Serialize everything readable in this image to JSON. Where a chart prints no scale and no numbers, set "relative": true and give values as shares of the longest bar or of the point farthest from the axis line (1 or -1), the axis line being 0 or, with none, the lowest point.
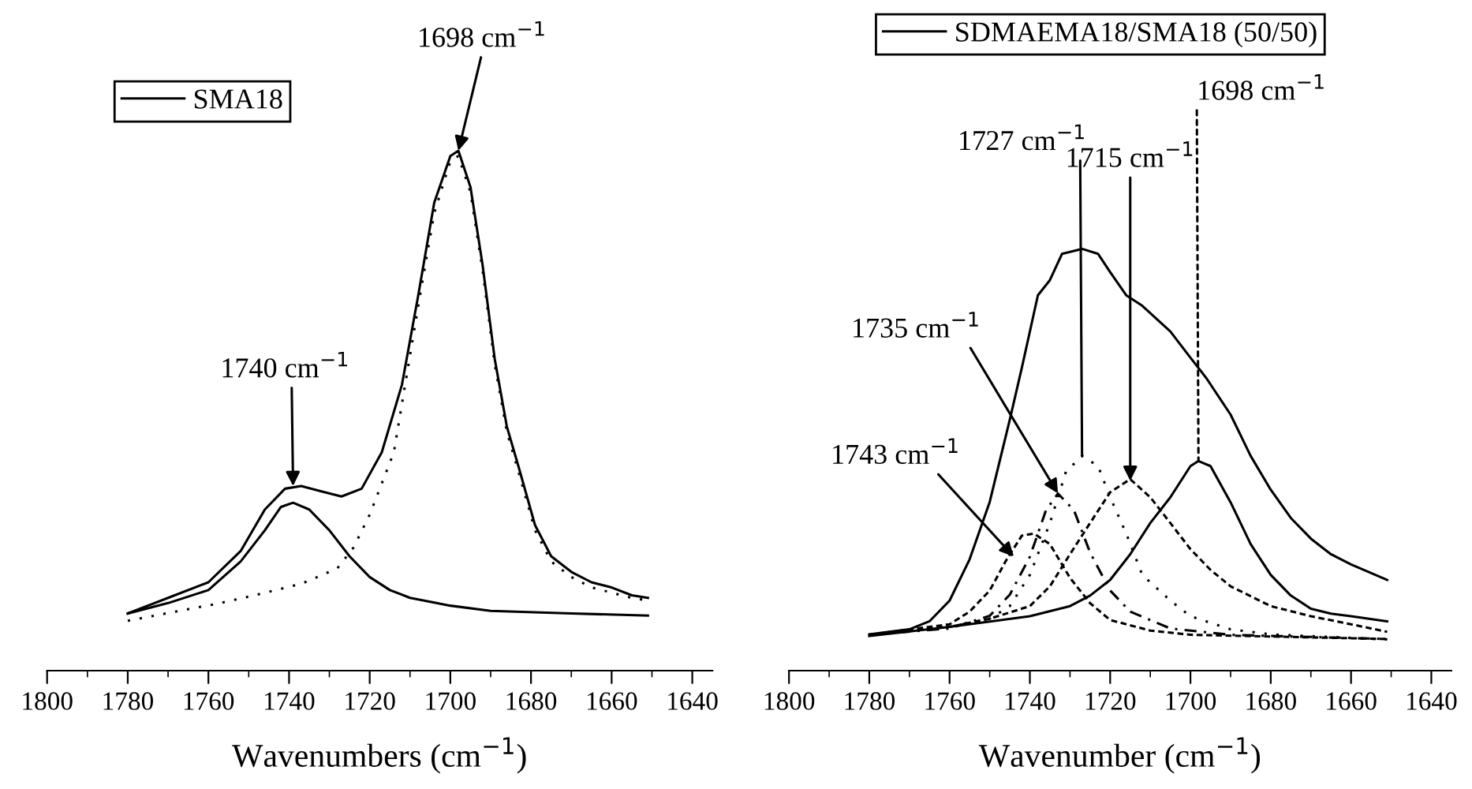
{
  "chart_data": [
    {
      "type": "line",
      "relative": true,
      "xlabel": "Wavenumbers (cm$^{−1}$)",
      "xlim": [
        1800,
        1635
      ],
      "xticks": [
        1800,
        1780,
        1760,
        1740,
        1720,
        1700,
        1680,
        1660,
        1640
      ],
      "legend": "top left",
      "grid": false,
      "marker": "none",
      "series": [
        {
          "name": "SMA18",
          "color": "#000000",
          "line_style": "solid",
          "x": [
            1780,
            1770,
            1760,
            1752,
            1746,
            1741,
            1737,
            1732,
            1727,
            1722,
            1717,
            1712,
            1708,
            1704,
            1700,
            1698,
            1695,
            1692,
            1689,
            1686,
            1683,
            1679,
            1675,
            1670,
            1665,
            1660,
            1655,
            1651
          ],
          "values": [
            0.11,
            0.14,
            0.17,
            0.23,
            0.31,
            0.35,
            0.355,
            0.345,
            0.335,
            0.35,
            0.42,
            0.55,
            0.72,
            0.9,
            0.99,
            1.0,
            0.93,
            0.78,
            0.6,
            0.47,
            0.39,
            0.28,
            0.22,
            0.19,
            0.17,
            0.16,
            0.145,
            0.14
          ]
        },
        {
          "color": "#000000",
          "line_style": "solid",
          "x": [
            1780,
            1770,
            1760,
            1752,
            1746,
            1742,
            1739,
            1735,
            1730,
            1725,
            1720,
            1715,
            1710,
            1700,
            1690,
            1670,
            1651
          ],
          "values": [
            0.11,
            0.13,
            0.155,
            0.21,
            0.27,
            0.315,
            0.323,
            0.31,
            0.27,
            0.22,
            0.18,
            0.155,
            0.14,
            0.125,
            0.115,
            0.11,
            0.106
          ]
        },
        {
          "color": "#000000",
          "line_style": "dotted",
          "x": [
            1780,
            1757,
            1748,
            1737,
            1733,
            1728,
            1724,
            1720,
            1714,
            1708,
            1704,
            1700,
            1698,
            1695,
            1692,
            1689,
            1686,
            1683,
            1679,
            1675,
            1670,
            1665,
            1660,
            1655,
            1651
          ],
          "values": [
            0.096,
            0.13,
            0.146,
            0.167,
            0.18,
            0.197,
            0.237,
            0.3,
            0.42,
            0.7,
            0.88,
            0.98,
            0.99,
            0.92,
            0.77,
            0.59,
            0.46,
            0.38,
            0.27,
            0.21,
            0.18,
            0.16,
            0.15,
            0.14,
            0.135
          ]
        }
      ],
      "annotations": [
        {
          "text": "1698 cm$^{−1}$",
          "x": 1698,
          "y": 1.0
        },
        {
          "text": "1740 cm$^{−1}$",
          "x": 1739,
          "y": 0.355
        }
      ]
    },
    {
      "type": "line",
      "relative": true,
      "xlabel": "Wavenumber (cm$^{−1}$)",
      "xlim": [
        1800,
        1635
      ],
      "xticks": [
        1800,
        1780,
        1760,
        1740,
        1720,
        1700,
        1680,
        1660,
        1640
      ],
      "legend": "top",
      "grid": false,
      "marker": "none",
      "series": [
        {
          "name": "SDMAEMA18/SMA18 (50/50)",
          "color": "#000000",
          "line_style": "solid",
          "x": [
            1780,
            1770,
            1765,
            1760,
            1755,
            1750,
            1745,
            1742,
            1738,
            1735,
            1732,
            1727,
            1723,
            1720,
            1716,
            1712,
            1705,
            1700,
            1696,
            1690,
            1685,
            1680,
            1675,
            1670,
            1665,
            1660,
            1651
          ],
          "values": [
            0.086,
            0.098,
            0.117,
            0.166,
            0.264,
            0.4,
            0.595,
            0.718,
            0.89,
            0.926,
            0.988,
            1.0,
            0.988,
            0.945,
            0.89,
            0.865,
            0.804,
            0.742,
            0.693,
            0.607,
            0.509,
            0.429,
            0.362,
            0.313,
            0.276,
            0.252,
            0.215
          ]
        },
        {
          "color": "#000000",
          "line_style": "solid",
          "x": [
            1780,
            1760,
            1740,
            1730,
            1725,
            1720,
            1715,
            1710,
            1705,
            1700,
            1698,
            1695,
            1690,
            1685,
            1680,
            1675,
            1670,
            1665,
            1660,
            1651
          ],
          "values": [
            0.082,
            0.104,
            0.129,
            0.153,
            0.178,
            0.215,
            0.276,
            0.35,
            0.411,
            0.485,
            0.497,
            0.485,
            0.399,
            0.3,
            0.227,
            0.178,
            0.147,
            0.135,
            0.129,
            0.117
          ]
        },
        {
          "color": "#000000",
          "line_style": "dashed",
          "x": [
            1780,
            1760,
            1750,
            1740,
            1735,
            1730,
            1725,
            1720,
            1715,
            1710,
            1705,
            1700,
            1695,
            1690,
            1680,
            1670,
            1660,
            1651
          ],
          "values": [
            0.085,
            0.104,
            0.123,
            0.153,
            0.2,
            0.276,
            0.35,
            0.423,
            0.454,
            0.411,
            0.35,
            0.288,
            0.239,
            0.2,
            0.153,
            0.129,
            0.11,
            0.092
          ]
        },
        {
          "color": "#000000",
          "line_style": "dotted",
          "x": [
            1780,
            1760,
            1750,
            1745,
            1740,
            1735,
            1731,
            1727,
            1723,
            1720,
            1716,
            1712,
            1705,
            1700,
            1690,
            1680,
            1651
          ],
          "values": [
            0.085,
            0.104,
            0.123,
            0.153,
            0.227,
            0.35,
            0.472,
            0.509,
            0.485,
            0.411,
            0.325,
            0.227,
            0.166,
            0.129,
            0.098,
            0.086,
            0.074
          ]
        },
        {
          "color": "#000000",
          "line_style": "dashed",
          "x": [
            1780,
            1760,
            1755,
            1750,
            1746,
            1742,
            1739,
            1735,
            1730,
            1725,
            1720,
            1710,
            1700,
            1651
          ],
          "values": [
            0.085,
            0.11,
            0.14,
            0.19,
            0.26,
            0.32,
            0.325,
            0.3,
            0.22,
            0.16,
            0.12,
            0.095,
            0.085,
            0.075
          ]
        },
        {
          "color": "#000000",
          "line_style": "dashdot",
          "x": [
            1780,
            1760,
            1750,
            1745,
            1740,
            1736,
            1733,
            1729,
            1725,
            1720,
            1715,
            1705,
            1690,
            1651
          ],
          "values": [
            0.085,
            0.1,
            0.13,
            0.18,
            0.27,
            0.38,
            0.42,
            0.38,
            0.28,
            0.19,
            0.14,
            0.1,
            0.085,
            0.075
          ]
        }
      ],
      "annotations": [
        {
          "text": "1727 cm$^{−1}$",
          "x": 1727,
          "y": 0.509
        },
        {
          "text": "1715 cm$^{−1}$",
          "x": 1715,
          "y": 0.45
        },
        {
          "text": "1698 cm$^{−1}$",
          "x": 1698,
          "y": 0.497
        },
        {
          "text": "1735 cm$^{−1}$",
          "x": 1733,
          "y": 0.42
        },
        {
          "text": "1743 cm$^{−1}$",
          "x": 1744,
          "y": 0.27
        }
      ]
    }
  ]
}
